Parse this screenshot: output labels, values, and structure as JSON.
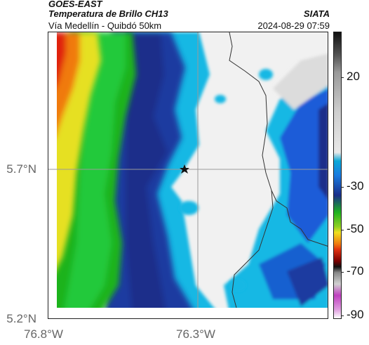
{
  "header": {
    "satellite": "GOES-EAST",
    "product": "Temperatura de Brillo CH13",
    "route": "Vía Medellín - Quibdó 50km",
    "organization": "SIATA",
    "timestamp": "2024-08-29 07:59"
  },
  "map": {
    "lat_ticks": [
      "5.7°N",
      "5.2°N"
    ],
    "lon_ticks": [
      "76.8°W",
      "76.3°W"
    ],
    "marker": "point-of-interest-star-icon"
  },
  "colorbar": {
    "ticks": [
      "20",
      "-30",
      "-50",
      "-70",
      "-90"
    ],
    "colors": [
      "#111111",
      "#bdbdbd",
      "#0aa8d8",
      "#1a2e8a",
      "#1fb31f",
      "#f0e020",
      "#e03010",
      "#7a0000",
      "#c040c0"
    ]
  }
}
